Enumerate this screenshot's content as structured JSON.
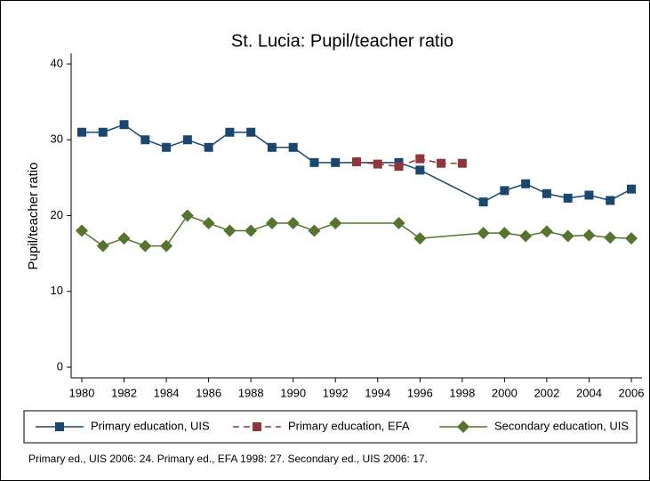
{
  "chart_data": {
    "type": "line",
    "title": "St. Lucia: Pupil/teacher ratio",
    "ylabel": "Pupil/teacher ratio",
    "xlim": [
      1980,
      2006
    ],
    "xticks": [
      1980,
      1982,
      1984,
      1986,
      1988,
      1990,
      1992,
      1994,
      1996,
      1998,
      2000,
      2002,
      2004,
      2006
    ],
    "ylim": [
      0,
      40
    ],
    "yticks": [
      0,
      10,
      20,
      30,
      40
    ],
    "series": [
      {
        "name": "Primary education, UIS",
        "color": "#1a476f",
        "marker": "square",
        "dash": false,
        "x": [
          1980,
          1981,
          1982,
          1983,
          1984,
          1985,
          1986,
          1987,
          1988,
          1989,
          1990,
          1991,
          1992,
          1995,
          1996,
          1999,
          2000,
          2001,
          2002,
          2003,
          2004,
          2005,
          2006
        ],
        "values": [
          31,
          31,
          32,
          30,
          29,
          30,
          29,
          31,
          31,
          29,
          29,
          27,
          27,
          27,
          26,
          21.8,
          23.3,
          24.2,
          22.9,
          22.3,
          22.7,
          22.0,
          23.5
        ]
      },
      {
        "name": "Primary education, EFA",
        "color": "#90353b",
        "marker": "square",
        "dash": true,
        "x": [
          1993,
          1994,
          1995,
          1996,
          1997,
          1998
        ],
        "values": [
          27.1,
          26.8,
          26.5,
          27.5,
          26.9,
          26.9
        ]
      },
      {
        "name": "Secondary education, UIS",
        "color": "#55752f",
        "marker": "diamond",
        "dash": false,
        "x": [
          1980,
          1981,
          1982,
          1983,
          1984,
          1985,
          1986,
          1987,
          1988,
          1989,
          1990,
          1991,
          1992,
          1995,
          1996,
          1999,
          2000,
          2001,
          2002,
          2003,
          2004,
          2005,
          2006
        ],
        "values": [
          18,
          16,
          17,
          16,
          16,
          20,
          19,
          18,
          18,
          19,
          19,
          18,
          19,
          19,
          17,
          17.7,
          17.7,
          17.3,
          17.9,
          17.3,
          17.4,
          17.1,
          17
        ]
      }
    ],
    "note": "Primary ed., UIS 2006: 24. Primary ed., EFA 1998: 27. Secondary ed., UIS 2006: 17."
  }
}
